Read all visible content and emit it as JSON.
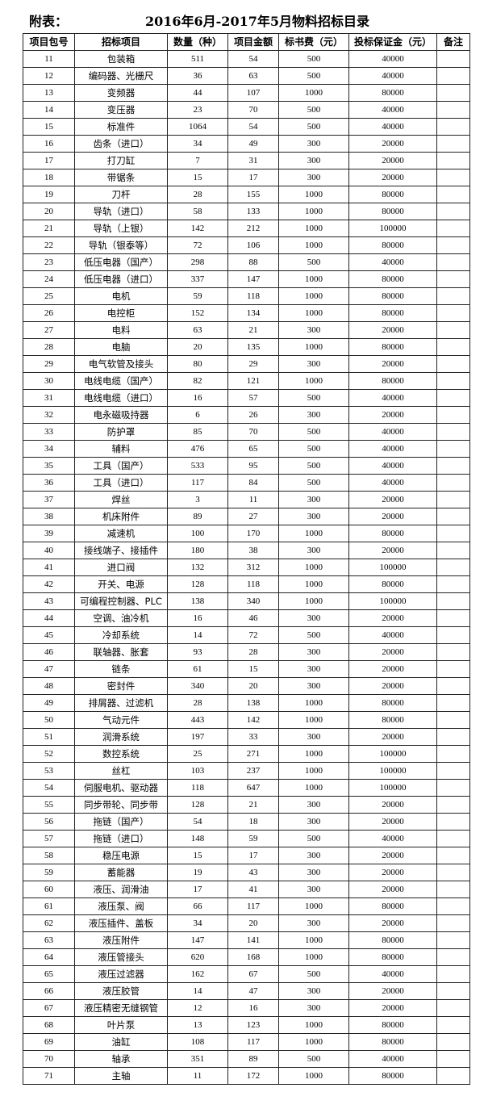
{
  "doc": {
    "prefix": "附表：",
    "title": "2016年6月-2017年5月物料招标目录"
  },
  "table": {
    "headers": [
      "项目包号",
      "招标项目",
      "数量（种）",
      "项目金额",
      "标书费（元）",
      "投标保证金（元）",
      "备注"
    ],
    "rows": [
      [
        "11",
        "包装箱",
        "511",
        "54",
        "500",
        "40000",
        ""
      ],
      [
        "12",
        "编码器、光栅尺",
        "36",
        "63",
        "500",
        "40000",
        ""
      ],
      [
        "13",
        "变频器",
        "44",
        "107",
        "1000",
        "80000",
        ""
      ],
      [
        "14",
        "变压器",
        "23",
        "70",
        "500",
        "40000",
        ""
      ],
      [
        "15",
        "标准件",
        "1064",
        "54",
        "500",
        "40000",
        ""
      ],
      [
        "16",
        "齿条（进口）",
        "34",
        "49",
        "300",
        "20000",
        ""
      ],
      [
        "17",
        "打刀缸",
        "7",
        "31",
        "300",
        "20000",
        ""
      ],
      [
        "18",
        "带锯条",
        "15",
        "17",
        "300",
        "20000",
        ""
      ],
      [
        "19",
        "刀杆",
        "28",
        "155",
        "1000",
        "80000",
        ""
      ],
      [
        "20",
        "导轨（进口）",
        "58",
        "133",
        "1000",
        "80000",
        ""
      ],
      [
        "21",
        "导轨（上银）",
        "142",
        "212",
        "1000",
        "100000",
        ""
      ],
      [
        "22",
        "导轨（银泰等）",
        "72",
        "106",
        "1000",
        "80000",
        ""
      ],
      [
        "23",
        "低压电器（国产）",
        "298",
        "88",
        "500",
        "40000",
        ""
      ],
      [
        "24",
        "低压电器（进口）",
        "337",
        "147",
        "1000",
        "80000",
        ""
      ],
      [
        "25",
        "电机",
        "59",
        "118",
        "1000",
        "80000",
        ""
      ],
      [
        "26",
        "电控柜",
        "152",
        "134",
        "1000",
        "80000",
        ""
      ],
      [
        "27",
        "电料",
        "63",
        "21",
        "300",
        "20000",
        ""
      ],
      [
        "28",
        "电脑",
        "20",
        "135",
        "1000",
        "80000",
        ""
      ],
      [
        "29",
        "电气软管及接头",
        "80",
        "29",
        "300",
        "20000",
        ""
      ],
      [
        "30",
        "电线电缆（国产）",
        "82",
        "121",
        "1000",
        "80000",
        ""
      ],
      [
        "31",
        "电线电缆（进口）",
        "16",
        "57",
        "500",
        "40000",
        ""
      ],
      [
        "32",
        "电永磁吸持器",
        "6",
        "26",
        "300",
        "20000",
        ""
      ],
      [
        "33",
        "防护罩",
        "85",
        "70",
        "500",
        "40000",
        ""
      ],
      [
        "34",
        "辅料",
        "476",
        "65",
        "500",
        "40000",
        ""
      ],
      [
        "35",
        "工具（国产）",
        "533",
        "95",
        "500",
        "40000",
        ""
      ],
      [
        "36",
        "工具（进口）",
        "117",
        "84",
        "500",
        "40000",
        ""
      ],
      [
        "37",
        "焊丝",
        "3",
        "11",
        "300",
        "20000",
        ""
      ],
      [
        "38",
        "机床附件",
        "89",
        "27",
        "300",
        "20000",
        ""
      ],
      [
        "39",
        "减速机",
        "100",
        "170",
        "1000",
        "80000",
        ""
      ],
      [
        "40",
        "接线端子、接插件",
        "180",
        "38",
        "300",
        "20000",
        ""
      ],
      [
        "41",
        "进口阀",
        "132",
        "312",
        "1000",
        "100000",
        ""
      ],
      [
        "42",
        "开关、电源",
        "128",
        "118",
        "1000",
        "80000",
        ""
      ],
      [
        "43",
        "可编程控制器、PLC",
        "138",
        "340",
        "1000",
        "100000",
        ""
      ],
      [
        "44",
        "空调、油冷机",
        "16",
        "46",
        "300",
        "20000",
        ""
      ],
      [
        "45",
        "冷却系统",
        "14",
        "72",
        "500",
        "40000",
        ""
      ],
      [
        "46",
        "联轴器、胀套",
        "93",
        "28",
        "300",
        "20000",
        ""
      ],
      [
        "47",
        "链条",
        "61",
        "15",
        "300",
        "20000",
        ""
      ],
      [
        "48",
        "密封件",
        "340",
        "20",
        "300",
        "20000",
        ""
      ],
      [
        "49",
        "排屑器、过滤机",
        "28",
        "138",
        "1000",
        "80000",
        ""
      ],
      [
        "50",
        "气动元件",
        "443",
        "142",
        "1000",
        "80000",
        ""
      ],
      [
        "51",
        "润滑系统",
        "197",
        "33",
        "300",
        "20000",
        ""
      ],
      [
        "52",
        "数控系统",
        "25",
        "271",
        "1000",
        "100000",
        ""
      ],
      [
        "53",
        "丝杠",
        "103",
        "237",
        "1000",
        "100000",
        ""
      ],
      [
        "54",
        "伺服电机、驱动器",
        "118",
        "647",
        "1000",
        "100000",
        ""
      ],
      [
        "55",
        "同步带轮、同步带",
        "128",
        "21",
        "300",
        "20000",
        ""
      ],
      [
        "56",
        "拖链（国产）",
        "54",
        "18",
        "300",
        "20000",
        ""
      ],
      [
        "57",
        "拖链（进口）",
        "148",
        "59",
        "500",
        "40000",
        ""
      ],
      [
        "58",
        "稳压电源",
        "15",
        "17",
        "300",
        "20000",
        ""
      ],
      [
        "59",
        "蓄能器",
        "19",
        "43",
        "300",
        "20000",
        ""
      ],
      [
        "60",
        "液压、润滑油",
        "17",
        "41",
        "300",
        "20000",
        ""
      ],
      [
        "61",
        "液压泵、阀",
        "66",
        "117",
        "1000",
        "80000",
        ""
      ],
      [
        "62",
        "液压插件、盖板",
        "34",
        "20",
        "300",
        "20000",
        ""
      ],
      [
        "63",
        "液压附件",
        "147",
        "141",
        "1000",
        "80000",
        ""
      ],
      [
        "64",
        "液压管接头",
        "620",
        "168",
        "1000",
        "80000",
        ""
      ],
      [
        "65",
        "液压过滤器",
        "162",
        "67",
        "500",
        "40000",
        ""
      ],
      [
        "66",
        "液压胶管",
        "14",
        "47",
        "300",
        "20000",
        ""
      ],
      [
        "67",
        "液压精密无缝钢管",
        "12",
        "16",
        "300",
        "20000",
        ""
      ],
      [
        "68",
        "叶片泵",
        "13",
        "123",
        "1000",
        "80000",
        ""
      ],
      [
        "69",
        "油缸",
        "108",
        "117",
        "1000",
        "80000",
        ""
      ],
      [
        "70",
        "轴承",
        "351",
        "89",
        "500",
        "40000",
        ""
      ],
      [
        "71",
        "主轴",
        "11",
        "172",
        "1000",
        "80000",
        ""
      ]
    ]
  }
}
